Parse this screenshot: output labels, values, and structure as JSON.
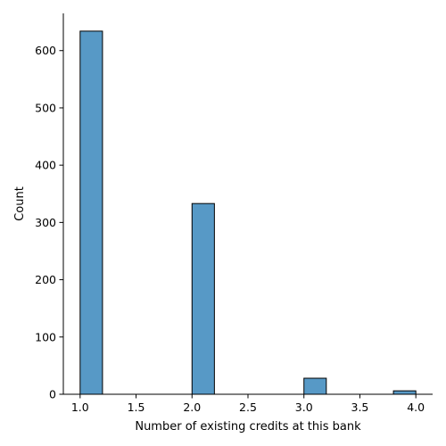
{
  "chart_data": {
    "type": "bar",
    "bin_edges": [
      [
        1.0,
        1.2
      ],
      [
        2.0,
        2.2
      ],
      [
        3.0,
        3.2
      ],
      [
        3.8,
        4.0
      ]
    ],
    "values": [
      634,
      333,
      28,
      6
    ],
    "bar_color": "#5799c6",
    "edge_color": "#000000",
    "xlabel": "Number of existing credits at this bank",
    "ylabel": "Count",
    "xlim": [
      0.85,
      4.15
    ],
    "ylim": [
      0,
      665
    ],
    "x_ticks": [
      1.0,
      1.5,
      2.0,
      2.5,
      3.0,
      3.5,
      4.0
    ],
    "x_tick_labels": [
      "1.0",
      "1.5",
      "2.0",
      "2.5",
      "3.0",
      "3.5",
      "4.0"
    ],
    "y_ticks": [
      0,
      100,
      200,
      300,
      400,
      500,
      600
    ],
    "y_tick_labels": [
      "0",
      "100",
      "200",
      "300",
      "400",
      "500",
      "600"
    ],
    "grid": false,
    "spines": [
      "left",
      "bottom"
    ]
  }
}
